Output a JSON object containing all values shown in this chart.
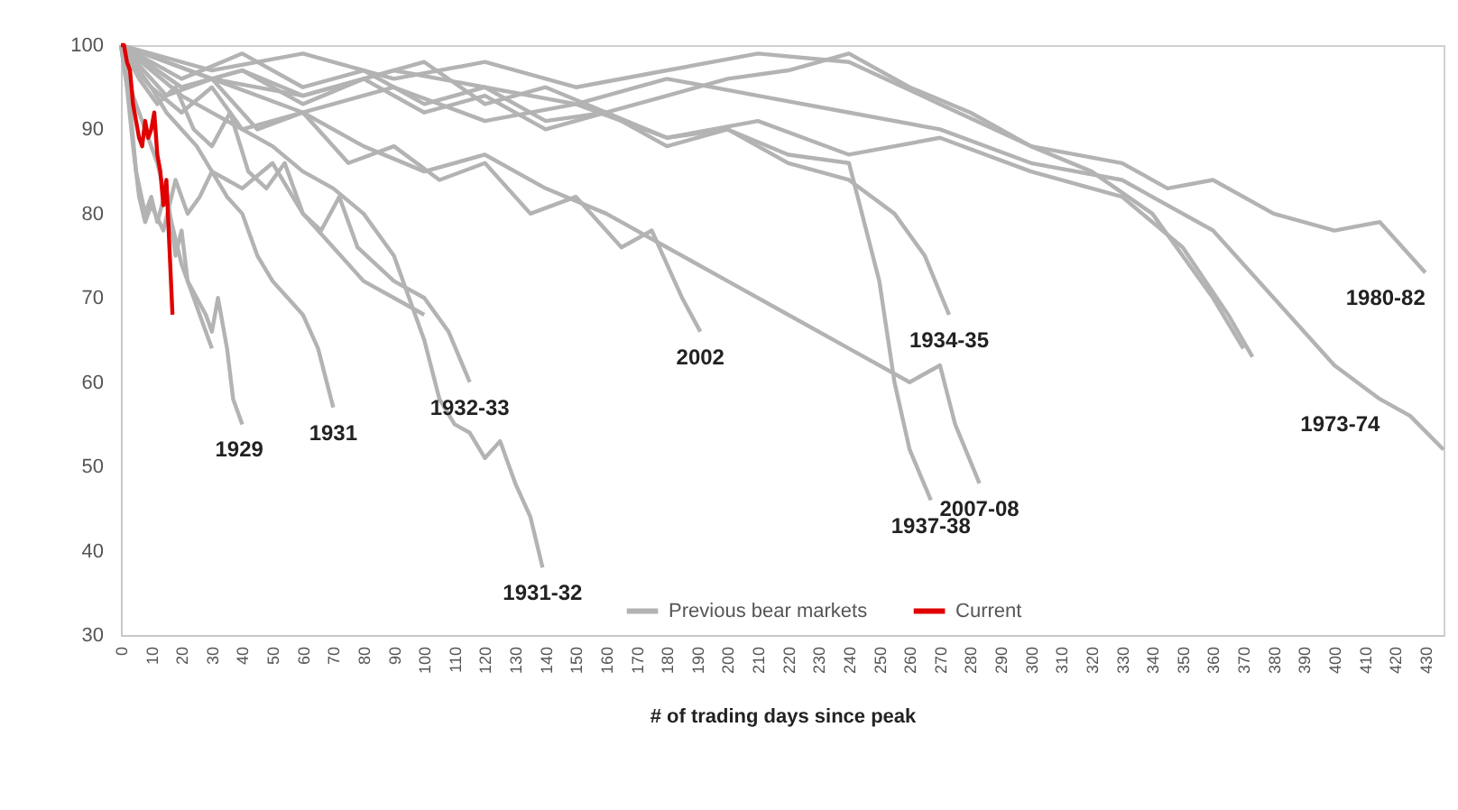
{
  "chart_data": {
    "type": "line",
    "xlabel": "# of trading days since peak",
    "xlim": [
      0,
      436
    ],
    "xticks": [
      0,
      10,
      20,
      30,
      40,
      50,
      60,
      70,
      80,
      90,
      100,
      110,
      120,
      130,
      140,
      150,
      160,
      170,
      180,
      190,
      200,
      210,
      220,
      230,
      240,
      250,
      260,
      270,
      280,
      290,
      300,
      310,
      320,
      330,
      340,
      350,
      360,
      370,
      380,
      390,
      400,
      410,
      420,
      430
    ],
    "ylim": [
      30,
      100
    ],
    "yticks": [
      30,
      40,
      50,
      60,
      70,
      80,
      90,
      100
    ],
    "grid": false,
    "legend": "bottom",
    "line_style": "solid",
    "marker": "none",
    "series": [
      {
        "name": "Previous bear markets",
        "color": "#b3b3b3",
        "x": [
          0,
          3,
          5,
          8,
          10,
          12,
          15,
          18,
          20,
          22,
          25,
          28,
          30,
          32,
          35,
          37,
          40
        ],
        "values": [
          100,
          93,
          85,
          80,
          82,
          79,
          83,
          75,
          78,
          72,
          70,
          68,
          66,
          70,
          64,
          58,
          55
        ]
      },
      {
        "color": "#b3b3b3",
        "x": [
          0,
          5,
          10,
          15,
          20,
          25,
          30,
          35,
          40,
          45,
          50,
          55,
          60,
          65,
          70
        ],
        "values": [
          100,
          97,
          95,
          92,
          90,
          88,
          85,
          82,
          80,
          75,
          72,
          70,
          68,
          64,
          57
        ]
      },
      {
        "color": "#b3b3b3",
        "x": [
          0,
          6,
          12,
          18,
          24,
          30,
          36,
          42,
          48,
          54,
          60,
          66,
          72,
          78,
          84,
          90,
          100,
          108,
          115
        ],
        "values": [
          100,
          96,
          93,
          95,
          90,
          88,
          92,
          85,
          83,
          86,
          80,
          78,
          82,
          76,
          74,
          72,
          70,
          66,
          60
        ]
      },
      {
        "color": "#b3b3b3",
        "x": [
          0,
          10,
          20,
          30,
          40,
          50,
          60,
          70,
          80,
          90,
          95,
          100,
          105,
          110,
          115,
          120,
          125,
          130,
          135,
          139
        ],
        "values": [
          100,
          95,
          92,
          95,
          90,
          88,
          85,
          83,
          80,
          75,
          70,
          65,
          58,
          55,
          54,
          51,
          53,
          48,
          44,
          38
        ]
      },
      {
        "color": "#b3b3b3",
        "x": [
          0,
          15,
          30,
          45,
          60,
          75,
          90,
          105,
          120,
          135,
          150,
          165,
          175,
          185,
          191
        ],
        "values": [
          100,
          94,
          96,
          90,
          92,
          86,
          88,
          84,
          86,
          80,
          82,
          76,
          78,
          70,
          66
        ]
      },
      {
        "color": "#b3b3b3",
        "x": [
          0,
          20,
          40,
          60,
          80,
          100,
          120,
          140,
          160,
          180,
          200,
          220,
          240,
          255,
          265,
          273
        ],
        "values": [
          100,
          95,
          97,
          93,
          96,
          92,
          94,
          90,
          92,
          88,
          90,
          86,
          84,
          80,
          75,
          68
        ]
      },
      {
        "color": "#b3b3b3",
        "x": [
          0,
          20,
          40,
          60,
          80,
          100,
          120,
          140,
          160,
          180,
          200,
          220,
          240,
          250,
          255,
          260,
          267
        ],
        "values": [
          100,
          96,
          99,
          95,
          97,
          93,
          95,
          91,
          92,
          89,
          90,
          87,
          86,
          72,
          60,
          52,
          46
        ]
      },
      {
        "color": "#b3b3b3",
        "x": [
          0,
          20,
          40,
          60,
          80,
          100,
          120,
          140,
          160,
          180,
          200,
          220,
          240,
          260,
          270,
          275,
          283
        ],
        "values": [
          100,
          94,
          90,
          92,
          88,
          85,
          87,
          83,
          80,
          76,
          72,
          68,
          64,
          60,
          62,
          55,
          48
        ]
      },
      {
        "color": "#b3b3b3",
        "x": [
          0,
          30,
          60,
          90,
          120,
          150,
          180,
          210,
          240,
          270,
          300,
          330,
          360,
          380,
          400,
          415,
          425,
          436
        ],
        "values": [
          100,
          96,
          94,
          97,
          95,
          93,
          96,
          94,
          92,
          90,
          86,
          84,
          78,
          70,
          62,
          58,
          56,
          52
        ]
      },
      {
        "color": "#b3b3b3",
        "x": [
          0,
          30,
          60,
          90,
          120,
          150,
          180,
          210,
          240,
          270,
          300,
          330,
          345,
          360,
          380,
          400,
          415,
          430
        ],
        "values": [
          100,
          97,
          99,
          96,
          98,
          95,
          97,
          99,
          98,
          93,
          88,
          86,
          83,
          84,
          80,
          78,
          79,
          73
        ]
      },
      {
        "color": "#b3b3b3",
        "x": [
          0,
          20,
          40,
          60,
          80,
          100,
          120,
          140,
          160,
          180,
          200,
          220,
          240,
          260,
          280,
          300,
          320,
          340,
          360,
          370
        ],
        "values": [
          100,
          95,
          97,
          94,
          96,
          98,
          93,
          95,
          92,
          94,
          96,
          97,
          99,
          95,
          92,
          88,
          85,
          80,
          70,
          64
        ]
      },
      {
        "color": "#b3b3b3",
        "x": [
          0,
          30,
          60,
          90,
          120,
          150,
          180,
          210,
          240,
          270,
          300,
          330,
          350,
          365,
          373
        ],
        "values": [
          100,
          96,
          92,
          95,
          91,
          93,
          89,
          91,
          87,
          89,
          85,
          82,
          76,
          68,
          63
        ]
      },
      {
        "color": "#b3b3b3",
        "x": [
          0,
          2,
          4,
          6,
          8,
          10,
          14,
          18,
          22,
          26,
          30,
          40,
          50,
          60,
          70,
          80,
          90,
          100
        ],
        "values": [
          100,
          95,
          88,
          82,
          79,
          81,
          78,
          84,
          80,
          82,
          85,
          83,
          86,
          80,
          76,
          72,
          70,
          68
        ]
      },
      {
        "color": "#b3b3b3",
        "x": [
          0,
          4,
          8,
          12,
          16,
          20,
          24,
          28,
          30
        ],
        "values": [
          100,
          94,
          90,
          86,
          80,
          74,
          70,
          66,
          64
        ]
      },
      {
        "name": "Current",
        "color": "#e00000",
        "x": [
          0,
          1,
          2,
          3,
          4,
          5,
          6,
          7,
          8,
          9,
          10,
          11,
          12,
          13,
          14,
          15,
          16,
          17
        ],
        "values": [
          100,
          100,
          98,
          97,
          93,
          91,
          89,
          88,
          91,
          89,
          90,
          92,
          87,
          85,
          81,
          84,
          76,
          68
        ]
      }
    ],
    "annotations": [
      {
        "text": "1929",
        "x": 39,
        "y": 55
      },
      {
        "text": "1931",
        "x": 70,
        "y": 57
      },
      {
        "text": "1932-33",
        "x": 115,
        "y": 60
      },
      {
        "text": "1931-32",
        "x": 139,
        "y": 38
      },
      {
        "text": "2002",
        "x": 191,
        "y": 66
      },
      {
        "text": "1934-35",
        "x": 273,
        "y": 68
      },
      {
        "text": "1937-38",
        "x": 267,
        "y": 46
      },
      {
        "text": "2007-08",
        "x": 283,
        "y": 48
      },
      {
        "text": "1973-74",
        "x": 415,
        "y": 58
      },
      {
        "text": "1980-82",
        "x": 430,
        "y": 73
      }
    ]
  }
}
